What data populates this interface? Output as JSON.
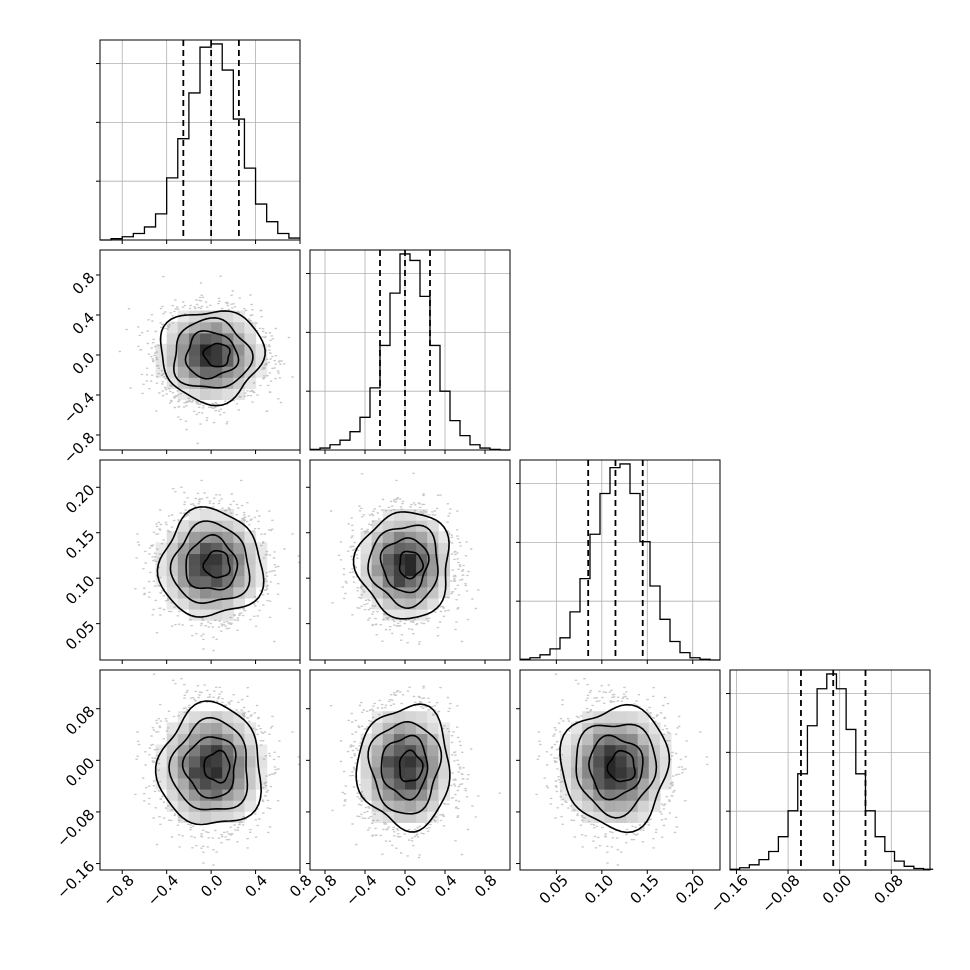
{
  "chart_data": {
    "type": "corner",
    "grid": true,
    "colors": {
      "line": "#000000",
      "grid": "#b0b0b0",
      "points": "#9a9a9a"
    },
    "ranges": [
      [
        -1.0,
        0.8
      ],
      [
        -0.95,
        1.05
      ],
      [
        0.01,
        0.23
      ],
      [
        -0.17,
        0.14
      ]
    ],
    "ticks": [
      [
        -0.8,
        -0.4,
        0.0,
        0.4,
        0.8
      ],
      [
        -0.8,
        -0.4,
        0.0,
        0.4,
        0.8
      ],
      [
        0.05,
        0.1,
        0.15,
        0.2
      ],
      [
        -0.16,
        -0.08,
        0.0,
        0.08
      ]
    ],
    "tick_labels": [
      [
        "−0.8",
        "−0.4",
        "0.0",
        "0.4",
        "0.8"
      ],
      [
        "−0.8",
        "−0.4",
        "0.0",
        "0.4",
        "0.8"
      ],
      [
        "0.05",
        "0.10",
        "0.15",
        "0.20"
      ],
      [
        "−0.16",
        "−0.08",
        "0.00",
        "0.08"
      ]
    ],
    "marginals": [
      {
        "bin_edges": [
          -1.0,
          -0.9,
          -0.8,
          -0.7,
          -0.6,
          -0.5,
          -0.4,
          -0.3,
          -0.2,
          -0.1,
          0.0,
          0.1,
          0.2,
          0.3,
          0.4,
          0.5,
          0.6,
          0.7,
          0.8
        ],
        "counts": [
          0,
          2,
          5,
          10,
          20,
          40,
          95,
          155,
          225,
          295,
          300,
          260,
          185,
          110,
          55,
          28,
          10,
          3
        ],
        "quantiles": [
          -0.25,
          0.0,
          0.25
        ]
      },
      {
        "bin_edges": [
          -0.95,
          -0.85,
          -0.75,
          -0.65,
          -0.55,
          -0.45,
          -0.35,
          -0.25,
          -0.15,
          -0.05,
          0.05,
          0.15,
          0.25,
          0.35,
          0.45,
          0.55,
          0.65,
          0.75,
          0.85,
          0.95,
          1.05
        ],
        "counts": [
          1,
          3,
          8,
          15,
          28,
          50,
          95,
          160,
          240,
          300,
          290,
          235,
          160,
          90,
          45,
          22,
          8,
          3,
          1,
          0
        ],
        "quantiles": [
          -0.25,
          0.0,
          0.25
        ]
      },
      {
        "bin_edges": [
          0.01,
          0.021,
          0.032,
          0.043,
          0.054,
          0.065,
          0.076,
          0.087,
          0.098,
          0.109,
          0.12,
          0.131,
          0.142,
          0.153,
          0.164,
          0.175,
          0.186,
          0.197,
          0.208,
          0.219,
          0.23
        ],
        "counts": [
          1,
          3,
          7,
          15,
          30,
          65,
          110,
          170,
          225,
          260,
          265,
          225,
          160,
          100,
          55,
          25,
          10,
          3,
          1,
          0
        ],
        "quantiles": [
          0.085,
          0.115,
          0.145
        ]
      },
      {
        "bin_edges": [
          -0.17,
          -0.155,
          -0.14,
          -0.125,
          -0.11,
          -0.095,
          -0.08,
          -0.065,
          -0.05,
          -0.035,
          -0.02,
          -0.005,
          0.01,
          0.025,
          0.04,
          0.055,
          0.07,
          0.085,
          0.1,
          0.115,
          0.13,
          0.145
        ],
        "counts": [
          1,
          3,
          7,
          14,
          25,
          45,
          80,
          130,
          195,
          245,
          265,
          245,
          190,
          130,
          80,
          45,
          25,
          12,
          5,
          2,
          1
        ],
        "quantiles": [
          -0.06,
          -0.01,
          0.04
        ]
      }
    ],
    "means": [
      0.0,
      0.0,
      0.115,
      -0.01
    ],
    "sigmas": [
      0.22,
      0.22,
      0.028,
      0.045
    ],
    "samples_per_panel": 2800,
    "contour_levels_sigma": [
      0.5,
      1.0,
      1.5,
      2.0
    ]
  }
}
